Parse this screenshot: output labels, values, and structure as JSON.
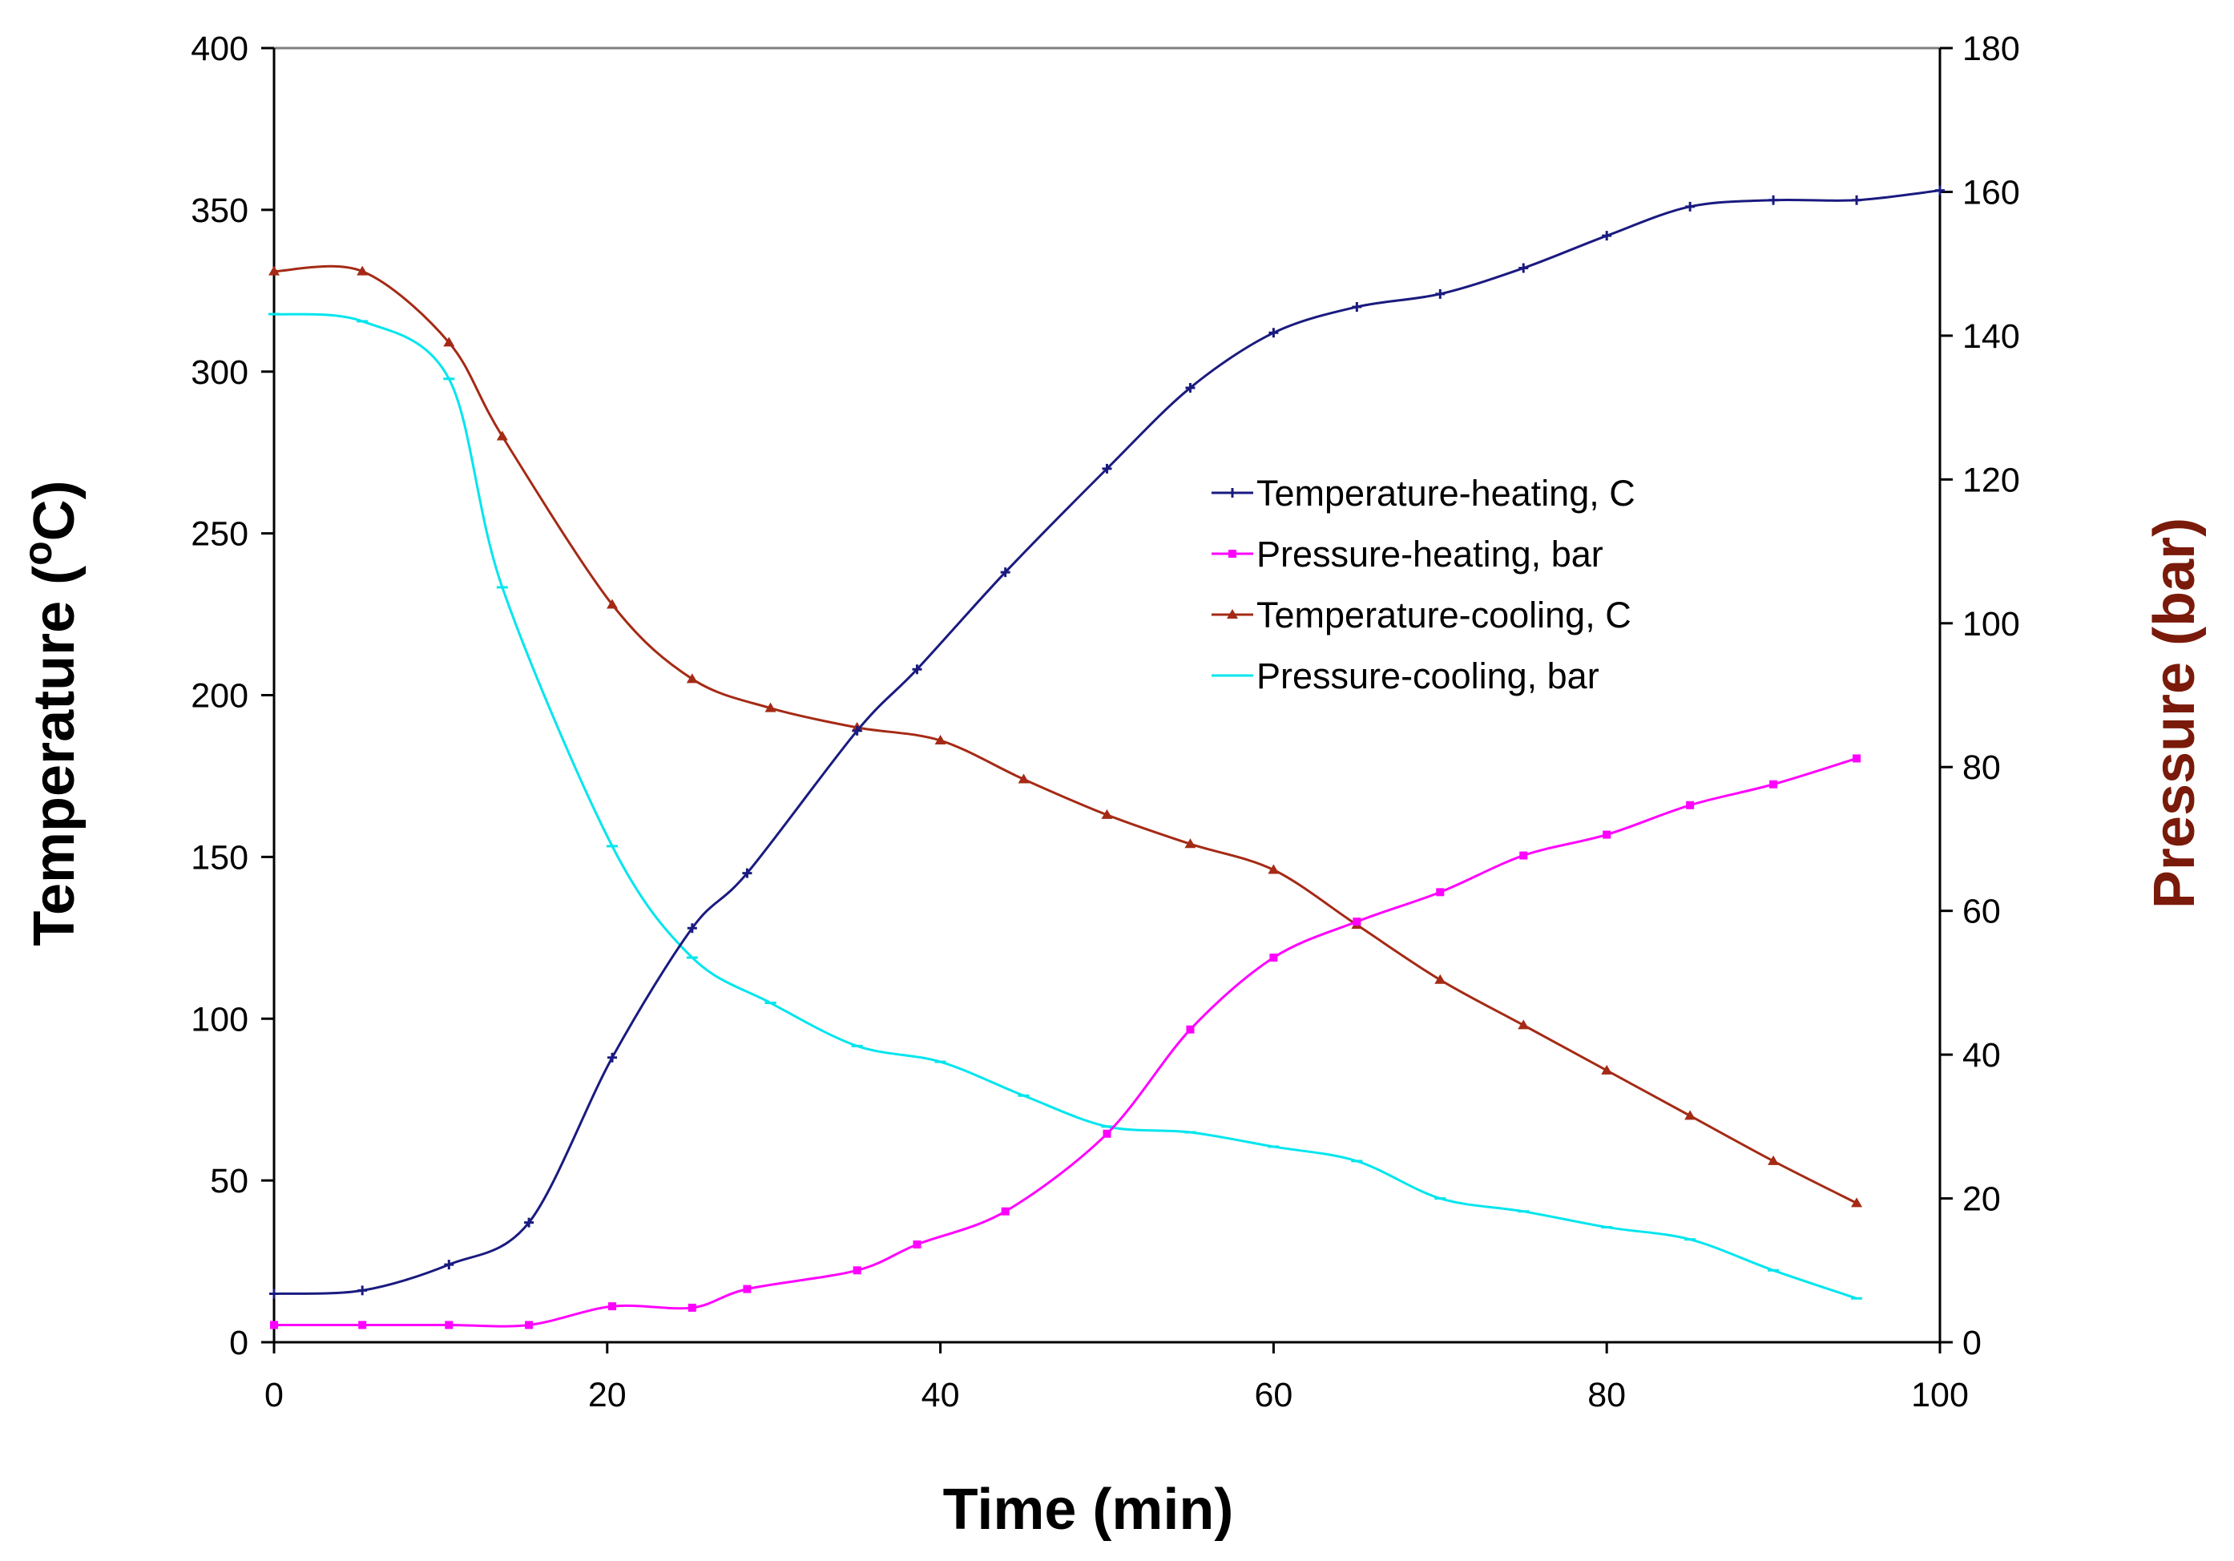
{
  "chart_data": {
    "type": "line",
    "title": "",
    "xlabel": "Time (min)",
    "ylabel_left": {
      "text": "Temperature (",
      "sup": "o",
      "tail": "C)"
    },
    "ylabel_right": "Pressure (bar)",
    "xlim": [
      0,
      100
    ],
    "ylim_left": [
      0,
      400
    ],
    "ylim_right": [
      0,
      180
    ],
    "x_ticks": [
      "0",
      "20",
      "40",
      "60",
      "80",
      "100"
    ],
    "y_left_ticks": [
      "0",
      "50",
      "100",
      "150",
      "200",
      "250",
      "300",
      "350",
      "400"
    ],
    "y_right_ticks": [
      "0",
      "20",
      "40",
      "60",
      "80",
      "100",
      "120",
      "140",
      "160",
      "180"
    ],
    "grid": false,
    "legend_position": "center-right",
    "series": [
      {
        "name": "Temperature-heating, C",
        "axis": "left",
        "color": "#1a1a80",
        "marker": "plus",
        "x": [
          0,
          5.3,
          10.5,
          15.3,
          20.3,
          25.1,
          28.4,
          35,
          38.6,
          43.9,
          50,
          55,
          60,
          65,
          70,
          75,
          80,
          85,
          90,
          95,
          100
        ],
        "y": [
          15,
          16,
          24,
          37,
          88,
          128,
          145,
          189,
          208,
          238,
          270,
          295,
          312,
          320,
          324,
          332,
          342,
          351,
          353,
          353,
          356
        ]
      },
      {
        "name": "Pressure-heating, bar",
        "axis": "right",
        "color": "#ff00ff",
        "marker": "square",
        "x": [
          0,
          5.3,
          10.5,
          15.3,
          20.3,
          25.1,
          28.4,
          35,
          38.6,
          43.9,
          50,
          55,
          60,
          65,
          70,
          75,
          80,
          85,
          90,
          95
        ],
        "y": [
          2.4,
          2.4,
          2.4,
          2.4,
          5,
          4.8,
          7.4,
          10,
          13.6,
          18.2,
          29,
          43.5,
          53.5,
          58.5,
          62.6,
          67.7,
          70.6,
          74.7,
          77.6,
          81.2
        ]
      },
      {
        "name": "Temperature-cooling, C",
        "axis": "left",
        "color": "#a52a15",
        "marker": "triangle",
        "x": [
          0,
          5.3,
          10.5,
          13.7,
          20.3,
          25.1,
          29.8,
          35,
          40,
          45,
          50,
          55,
          60,
          65,
          70,
          75,
          80,
          85,
          90,
          95
        ],
        "y": [
          331,
          331,
          309,
          280,
          228,
          205,
          196,
          190,
          186,
          174,
          163,
          154,
          146,
          129,
          112,
          98,
          84,
          70,
          56,
          43
        ]
      },
      {
        "name": "Pressure-cooling, bar",
        "axis": "right",
        "color": "#00e5ee",
        "marker": "line",
        "x": [
          0,
          5.3,
          10.5,
          13.7,
          20.3,
          25.1,
          29.8,
          35,
          40,
          45,
          50,
          55,
          60,
          65,
          70,
          75,
          80,
          85,
          90,
          95
        ],
        "y": [
          143,
          142,
          134,
          105,
          69,
          53.5,
          47.2,
          41.2,
          39,
          34.3,
          30,
          29.2,
          27.2,
          25.2,
          20,
          18.2,
          16,
          14.3,
          10,
          6.1
        ]
      }
    ]
  }
}
